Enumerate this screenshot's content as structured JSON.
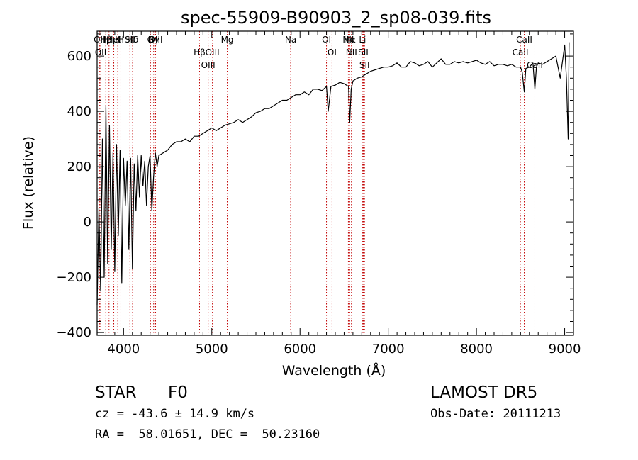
{
  "chart_data": {
    "type": "line",
    "title": "spec-55909-B90903_2_sp08-039.fits",
    "xlabel": "Wavelength (Å)",
    "ylabel": "Flux (relative)",
    "xlim": [
      3700,
      9100
    ],
    "ylim": [
      -410,
      690
    ],
    "xticks": [
      4000,
      5000,
      6000,
      7000,
      8000,
      9000
    ],
    "yticks": [
      -400,
      -200,
      0,
      200,
      400,
      600
    ],
    "x_minor_step": 100,
    "y_minor_step": 40,
    "line_color": "#000000",
    "marker_color": "#c00000",
    "series": [
      {
        "x": [
          3700,
          3720,
          3740,
          3760,
          3780,
          3800,
          3820,
          3840,
          3860,
          3880,
          3900,
          3920,
          3940,
          3960,
          3980,
          4000,
          4020,
          4040,
          4060,
          4080,
          4100,
          4120,
          4140,
          4160,
          4180,
          4200,
          4220,
          4240,
          4260,
          4280,
          4300,
          4320,
          4340,
          4360,
          4380,
          4400,
          4450,
          4500,
          4550,
          4600,
          4650,
          4700,
          4750,
          4800,
          4850,
          4900,
          4950,
          5000,
          5050,
          5100,
          5150,
          5200,
          5250,
          5300,
          5350,
          5400,
          5450,
          5500,
          5550,
          5600,
          5650,
          5700,
          5750,
          5800,
          5850,
          5900,
          5950,
          6000,
          6050,
          6100,
          6150,
          6200,
          6250,
          6300,
          6320,
          6350,
          6400,
          6450,
          6500,
          6550,
          6563,
          6580,
          6600,
          6650,
          6700,
          6750,
          6800,
          6850,
          6900,
          6950,
          7000,
          7050,
          7100,
          7150,
          7200,
          7250,
          7300,
          7350,
          7400,
          7450,
          7500,
          7550,
          7600,
          7650,
          7700,
          7750,
          7800,
          7850,
          7900,
          7950,
          8000,
          8050,
          8100,
          8150,
          8200,
          8250,
          8300,
          8350,
          8400,
          8450,
          8500,
          8520,
          8542,
          8560,
          8600,
          8640,
          8662,
          8680,
          8700,
          8750,
          8800,
          8850,
          8900,
          8950,
          9000,
          9020,
          9040,
          9050
        ],
        "y": [
          -300,
          50,
          -250,
          300,
          -200,
          420,
          -150,
          350,
          -100,
          250,
          -180,
          280,
          -50,
          260,
          -220,
          230,
          60,
          220,
          -100,
          230,
          -170,
          210,
          40,
          240,
          90,
          240,
          130,
          220,
          60,
          200,
          240,
          40,
          160,
          250,
          200,
          240,
          250,
          260,
          280,
          290,
          290,
          300,
          290,
          310,
          310,
          320,
          330,
          340,
          330,
          340,
          350,
          355,
          360,
          370,
          360,
          370,
          380,
          395,
          400,
          410,
          410,
          420,
          430,
          440,
          440,
          450,
          460,
          460,
          470,
          460,
          480,
          480,
          475,
          490,
          400,
          490,
          495,
          505,
          500,
          490,
          360,
          480,
          510,
          520,
          525,
          535,
          545,
          550,
          555,
          560,
          560,
          565,
          575,
          560,
          560,
          580,
          575,
          565,
          570,
          580,
          560,
          575,
          590,
          570,
          570,
          580,
          575,
          580,
          575,
          580,
          585,
          575,
          570,
          580,
          565,
          570,
          570,
          565,
          570,
          560,
          560,
          540,
          470,
          555,
          560,
          575,
          480,
          560,
          575,
          570,
          580,
          590,
          600,
          520,
          640,
          520,
          300,
          650
        ]
      }
    ],
    "line_markers": [
      {
        "label": "Hβ",
        "x": 3798
      },
      {
        "label": "OII",
        "x": 3727
      },
      {
        "label": "OII",
        "x": 3740
      },
      {
        "label": "Hη",
        "x": 3835
      },
      {
        "label": "K",
        "x": 3934
      },
      {
        "label": "HeI",
        "x": 3889
      },
      {
        "label": "H",
        "x": 3969
      },
      {
        "label": "Hδ",
        "x": 4102
      },
      {
        "label": "SII",
        "x": 4072
      },
      {
        "label": "OIII",
        "x": 4363
      },
      {
        "label": "Hγ",
        "x": 4341
      },
      {
        "label": "G",
        "x": 4305
      },
      {
        "label": "OIII",
        "x": 5007
      },
      {
        "label": "OIII",
        "x": 4959
      },
      {
        "label": "Hβ",
        "x": 4861
      },
      {
        "label": "Mg",
        "x": 5175
      },
      {
        "label": "Na",
        "x": 5894
      },
      {
        "label": "OI",
        "x": 6300
      },
      {
        "label": "OI",
        "x": 6363
      },
      {
        "label": "Hα",
        "x": 6563
      },
      {
        "label": "NII",
        "x": 6548
      },
      {
        "label": "NII",
        "x": 6583
      },
      {
        "label": "SII",
        "x": 6717
      },
      {
        "label": "SII",
        "x": 6731
      },
      {
        "label": "Li",
        "x": 6708
      },
      {
        "label": "CaII",
        "x": 8542
      },
      {
        "label": "CaII",
        "x": 8498
      },
      {
        "label": "CaII",
        "x": 8662
      }
    ]
  },
  "info": {
    "object_class": "STAR",
    "subclass": "F0",
    "survey": "LAMOST DR5",
    "redshift_line": "cz = -43.6 ± 14.9 km/s",
    "obs_date": "Obs-Date: 20111213",
    "coordinates": "RA =  58.01651, DEC =  50.23160"
  }
}
